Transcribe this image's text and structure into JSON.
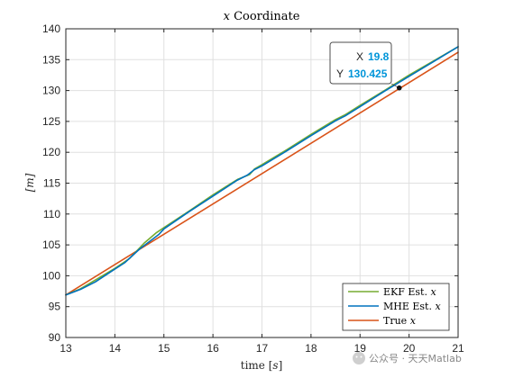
{
  "chart_data": {
    "type": "line",
    "title": "x Coordinate",
    "xlabel": "time [s]",
    "ylabel": "[m]",
    "xlim": [
      13,
      21
    ],
    "ylim": [
      90,
      140
    ],
    "xticks": [
      "13",
      "14",
      "15",
      "16",
      "17",
      "18",
      "19",
      "20",
      "21"
    ],
    "yticks": [
      "90",
      "95",
      "100",
      "105",
      "110",
      "115",
      "120",
      "125",
      "130",
      "135",
      "140"
    ],
    "grid": true,
    "legend_placement": "bottom-right",
    "series": [
      {
        "name": "EKF Est. x",
        "color": "#77AC30",
        "x": [
          13.0,
          13.3,
          13.6,
          14.0,
          14.3,
          14.6,
          14.85,
          15.0,
          15.5,
          16.0,
          16.5,
          16.75,
          16.85,
          17.0,
          17.5,
          18.0,
          18.5,
          18.7,
          19.0,
          19.5,
          20.0,
          20.5,
          21.0
        ],
        "y": [
          96.9,
          97.9,
          99.3,
          101.2,
          102.8,
          105.3,
          107.0,
          107.8,
          110.4,
          113.1,
          115.6,
          116.4,
          117.3,
          118.0,
          120.4,
          122.9,
          125.3,
          126.1,
          127.6,
          130.0,
          132.5,
          134.8,
          137.1
        ]
      },
      {
        "name": "MHE Est. x",
        "color": "#0072BD",
        "x": [
          13.0,
          13.3,
          13.6,
          14.0,
          14.2,
          14.5,
          14.9,
          15.0,
          15.5,
          16.0,
          16.5,
          16.7,
          16.85,
          17.0,
          17.5,
          18.0,
          18.5,
          18.7,
          19.0,
          19.5,
          20.0,
          20.5,
          21.0
        ],
        "y": [
          96.9,
          97.8,
          99.0,
          101.1,
          102.1,
          104.3,
          106.7,
          107.6,
          110.3,
          112.9,
          115.5,
          116.3,
          117.2,
          117.8,
          120.2,
          122.7,
          125.1,
          125.9,
          127.4,
          129.9,
          132.3,
          134.7,
          137.1
        ]
      },
      {
        "name": "True x",
        "color": "#D95319",
        "x": [
          13.0,
          21.0
        ],
        "y": [
          96.9,
          136.2
        ]
      }
    ],
    "annotations": [
      {
        "type": "datatip",
        "x": 19.8,
        "y": 130.425,
        "label_x": "X",
        "label_y": "Y",
        "value_x": "19.8",
        "value_y": "130.425"
      }
    ]
  },
  "watermark": "公众号 · 天天Matlab"
}
